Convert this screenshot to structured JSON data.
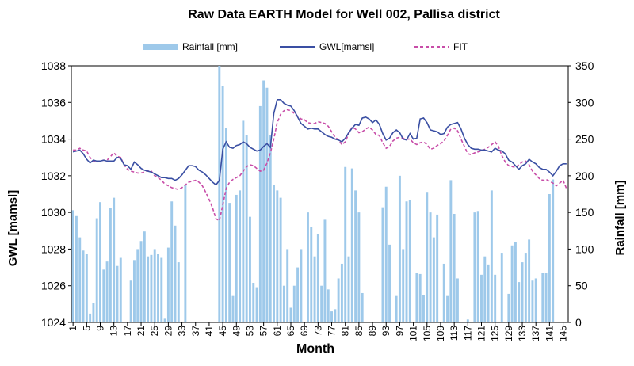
{
  "chart_data": {
    "type": "bar+line",
    "title": "Raw Data EARTH Model for Well 002, Pallisa district",
    "xlabel": "Month",
    "ylabel_left": "GWL [mamsl]",
    "ylabel_right": "Rainfall [mm]",
    "y_left_range": [
      1024,
      1038
    ],
    "y_left_ticks": [
      "1024",
      "1026",
      "1028",
      "1030",
      "1032",
      "1034",
      "1036",
      "1038"
    ],
    "y_right_range": [
      0,
      350
    ],
    "y_right_ticks": [
      "0",
      "50",
      "100",
      "150",
      "200",
      "250",
      "300",
      "350"
    ],
    "x_range": [
      1,
      146
    ],
    "x_ticks": [
      "1",
      "5",
      "9",
      "13",
      "17",
      "21",
      "25",
      "29",
      "33",
      "37",
      "41",
      "45",
      "49",
      "53",
      "57",
      "61",
      "65",
      "69",
      "73",
      "77",
      "81",
      "85",
      "89",
      "93",
      "97",
      "101",
      "105",
      "109",
      "113",
      "117",
      "121",
      "125",
      "129",
      "133",
      "137",
      "141",
      "145"
    ],
    "grid": false,
    "legend_position": "top",
    "legend": [
      {
        "label": "Rainfall [mm]",
        "kind": "bar",
        "color": "#9ec9ea"
      },
      {
        "label": "GWL[mamsl]",
        "kind": "line",
        "color": "#3a4fa3"
      },
      {
        "label": "FIT",
        "kind": "dashed",
        "color": "#c84da8"
      }
    ],
    "rainfall": [
      153,
      145,
      116,
      98,
      93,
      12,
      27,
      142,
      164,
      72,
      83,
      156,
      170,
      77,
      88,
      0,
      0,
      57,
      85,
      100,
      111,
      124,
      90,
      92,
      100,
      93,
      88,
      5,
      102,
      165,
      132,
      82,
      0,
      188,
      0,
      0,
      0,
      0,
      0,
      0,
      0,
      0,
      0,
      360,
      322,
      265,
      163,
      36,
      174,
      180,
      275,
      255,
      144,
      54,
      48,
      295,
      330,
      320,
      255,
      187,
      180,
      170,
      50,
      100,
      20,
      50,
      75,
      100,
      0,
      150,
      130,
      90,
      120,
      50,
      140,
      45,
      15,
      18,
      60,
      80,
      212,
      90,
      210,
      180,
      150,
      40,
      0,
      0,
      0,
      0,
      0,
      157,
      185,
      106,
      0,
      36,
      200,
      100,
      165,
      167,
      0,
      67,
      66,
      37,
      178,
      150,
      116,
      147,
      0,
      80,
      36,
      194,
      148,
      60,
      0,
      0,
      4,
      0,
      150,
      152,
      65,
      90,
      79,
      180,
      65,
      0,
      95,
      0,
      39,
      105,
      110,
      55,
      82,
      95,
      113,
      57,
      60,
      0,
      68,
      68,
      175,
      195
    ],
    "gwl": [
      1033.3,
      1033.35,
      1033.4,
      1033.2,
      1032.9,
      1032.7,
      1032.85,
      1032.8,
      1032.8,
      1032.85,
      1032.8,
      1032.8,
      1032.8,
      1033.0,
      1032.95,
      1032.6,
      1032.55,
      1032.35,
      1032.75,
      1032.6,
      1032.4,
      1032.3,
      1032.25,
      1032.2,
      1032.1,
      1032.0,
      1031.9,
      1031.9,
      1031.85,
      1031.85,
      1031.75,
      1031.85,
      1032.05,
      1032.3,
      1032.55,
      1032.55,
      1032.5,
      1032.3,
      1032.2,
      1032.05,
      1031.85,
      1031.65,
      1031.5,
      1031.75,
      1033.45,
      1033.85,
      1033.55,
      1033.5,
      1033.65,
      1033.7,
      1033.85,
      1033.75,
      1033.55,
      1033.45,
      1033.35,
      1033.4,
      1033.6,
      1033.75,
      1033.55,
      1035.4,
      1036.15,
      1036.15,
      1035.95,
      1035.85,
      1035.8,
      1035.55,
      1035.2,
      1034.85,
      1034.7,
      1034.55,
      1034.6,
      1034.55,
      1034.55,
      1034.4,
      1034.25,
      1034.15,
      1034.1,
      1034.0,
      1033.95,
      1033.85,
      1034.05,
      1034.35,
      1034.6,
      1034.8,
      1034.75,
      1035.15,
      1035.2,
      1035.1,
      1034.9,
      1035.05,
      1034.8,
      1034.3,
      1033.95,
      1034.05,
      1034.35,
      1034.5,
      1034.35,
      1034.0,
      1033.95,
      1034.3,
      1034.0,
      1034.05,
      1035.1,
      1035.15,
      1034.9,
      1034.5,
      1034.45,
      1034.4,
      1034.25,
      1034.3,
      1034.65,
      1034.8,
      1034.85,
      1034.9,
      1034.55,
      1034.05,
      1033.7,
      1033.5,
      1033.45,
      1033.45,
      1033.4,
      1033.4,
      1033.35,
      1033.3,
      1033.5,
      1033.4,
      1033.35,
      1033.2,
      1032.85,
      1032.75,
      1032.55,
      1032.35,
      1032.55,
      1032.65,
      1032.9,
      1032.75,
      1032.65,
      1032.45,
      1032.35,
      1032.35,
      1032.2,
      1032.0,
      1032.25,
      1032.55,
      1032.65,
      1032.65
    ],
    "fit": [
      1033.4,
      1033.4,
      1033.5,
      1033.4,
      1033.35,
      1033.0,
      1032.8,
      1032.75,
      1032.8,
      1032.85,
      1032.85,
      1033.05,
      1033.25,
      1033.05,
      1033.0,
      1032.6,
      1032.35,
      1032.25,
      1032.2,
      1032.15,
      1032.15,
      1032.2,
      1032.3,
      1032.25,
      1032.0,
      1031.9,
      1031.75,
      1031.55,
      1031.45,
      1031.35,
      1031.3,
      1031.25,
      1031.35,
      1031.5,
      1031.65,
      1031.7,
      1031.75,
      1031.65,
      1031.45,
      1031.1,
      1030.7,
      1030.25,
      1029.65,
      1029.55,
      1030.4,
      1031.3,
      1031.65,
      1031.8,
      1031.9,
      1032.0,
      1032.25,
      1032.5,
      1032.6,
      1032.55,
      1032.4,
      1032.25,
      1032.3,
      1032.7,
      1033.25,
      1034.0,
      1034.9,
      1035.35,
      1035.55,
      1035.6,
      1035.55,
      1035.4,
      1035.25,
      1035.1,
      1035.05,
      1034.9,
      1034.85,
      1034.85,
      1034.95,
      1034.9,
      1034.85,
      1034.7,
      1034.4,
      1034.1,
      1033.95,
      1033.7,
      1033.85,
      1034.3,
      1034.65,
      1034.55,
      1034.35,
      1034.4,
      1034.55,
      1034.65,
      1034.5,
      1034.25,
      1034.2,
      1033.8,
      1033.5,
      1033.6,
      1033.9,
      1034.05,
      1034.1,
      1034.05,
      1034.0,
      1034.0,
      1033.8,
      1033.7,
      1033.8,
      1033.85,
      1033.7,
      1033.45,
      1033.5,
      1033.65,
      1033.75,
      1033.9,
      1034.2,
      1034.55,
      1034.6,
      1034.45,
      1034.0,
      1033.6,
      1033.2,
      1033.15,
      1033.25,
      1033.3,
      1033.35,
      1033.45,
      1033.55,
      1033.7,
      1033.85,
      1033.6,
      1033.1,
      1032.75,
      1032.55,
      1032.5,
      1032.45,
      1032.6,
      1032.75,
      1032.8,
      1032.6,
      1032.25,
      1032.05,
      1031.85,
      1031.75,
      1031.8,
      1031.7,
      1031.6,
      1031.45,
      1031.6,
      1031.75,
      1031.3
    ]
  }
}
